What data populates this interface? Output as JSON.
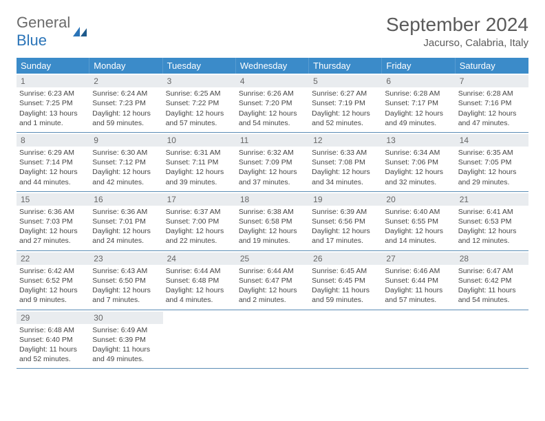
{
  "logo": {
    "general": "General",
    "blue": "Blue"
  },
  "title": "September 2024",
  "location": "Jacurso, Calabria, Italy",
  "colors": {
    "header_bg": "#3b8bc9",
    "header_text": "#ffffff",
    "daynum_bg": "#e9ecef",
    "week_border": "#5a8cb5",
    "text": "#444444",
    "title_text": "#5a5a5a",
    "logo_gray": "#6a6a6a",
    "logo_blue": "#2a74b8"
  },
  "day_headers": [
    "Sunday",
    "Monday",
    "Tuesday",
    "Wednesday",
    "Thursday",
    "Friday",
    "Saturday"
  ],
  "weeks": [
    [
      {
        "n": "1",
        "sr": "Sunrise: 6:23 AM",
        "ss": "Sunset: 7:25 PM",
        "dl": "Daylight: 13 hours and 1 minute."
      },
      {
        "n": "2",
        "sr": "Sunrise: 6:24 AM",
        "ss": "Sunset: 7:23 PM",
        "dl": "Daylight: 12 hours and 59 minutes."
      },
      {
        "n": "3",
        "sr": "Sunrise: 6:25 AM",
        "ss": "Sunset: 7:22 PM",
        "dl": "Daylight: 12 hours and 57 minutes."
      },
      {
        "n": "4",
        "sr": "Sunrise: 6:26 AM",
        "ss": "Sunset: 7:20 PM",
        "dl": "Daylight: 12 hours and 54 minutes."
      },
      {
        "n": "5",
        "sr": "Sunrise: 6:27 AM",
        "ss": "Sunset: 7:19 PM",
        "dl": "Daylight: 12 hours and 52 minutes."
      },
      {
        "n": "6",
        "sr": "Sunrise: 6:28 AM",
        "ss": "Sunset: 7:17 PM",
        "dl": "Daylight: 12 hours and 49 minutes."
      },
      {
        "n": "7",
        "sr": "Sunrise: 6:28 AM",
        "ss": "Sunset: 7:16 PM",
        "dl": "Daylight: 12 hours and 47 minutes."
      }
    ],
    [
      {
        "n": "8",
        "sr": "Sunrise: 6:29 AM",
        "ss": "Sunset: 7:14 PM",
        "dl": "Daylight: 12 hours and 44 minutes."
      },
      {
        "n": "9",
        "sr": "Sunrise: 6:30 AM",
        "ss": "Sunset: 7:12 PM",
        "dl": "Daylight: 12 hours and 42 minutes."
      },
      {
        "n": "10",
        "sr": "Sunrise: 6:31 AM",
        "ss": "Sunset: 7:11 PM",
        "dl": "Daylight: 12 hours and 39 minutes."
      },
      {
        "n": "11",
        "sr": "Sunrise: 6:32 AM",
        "ss": "Sunset: 7:09 PM",
        "dl": "Daylight: 12 hours and 37 minutes."
      },
      {
        "n": "12",
        "sr": "Sunrise: 6:33 AM",
        "ss": "Sunset: 7:08 PM",
        "dl": "Daylight: 12 hours and 34 minutes."
      },
      {
        "n": "13",
        "sr": "Sunrise: 6:34 AM",
        "ss": "Sunset: 7:06 PM",
        "dl": "Daylight: 12 hours and 32 minutes."
      },
      {
        "n": "14",
        "sr": "Sunrise: 6:35 AM",
        "ss": "Sunset: 7:05 PM",
        "dl": "Daylight: 12 hours and 29 minutes."
      }
    ],
    [
      {
        "n": "15",
        "sr": "Sunrise: 6:36 AM",
        "ss": "Sunset: 7:03 PM",
        "dl": "Daylight: 12 hours and 27 minutes."
      },
      {
        "n": "16",
        "sr": "Sunrise: 6:36 AM",
        "ss": "Sunset: 7:01 PM",
        "dl": "Daylight: 12 hours and 24 minutes."
      },
      {
        "n": "17",
        "sr": "Sunrise: 6:37 AM",
        "ss": "Sunset: 7:00 PM",
        "dl": "Daylight: 12 hours and 22 minutes."
      },
      {
        "n": "18",
        "sr": "Sunrise: 6:38 AM",
        "ss": "Sunset: 6:58 PM",
        "dl": "Daylight: 12 hours and 19 minutes."
      },
      {
        "n": "19",
        "sr": "Sunrise: 6:39 AM",
        "ss": "Sunset: 6:56 PM",
        "dl": "Daylight: 12 hours and 17 minutes."
      },
      {
        "n": "20",
        "sr": "Sunrise: 6:40 AM",
        "ss": "Sunset: 6:55 PM",
        "dl": "Daylight: 12 hours and 14 minutes."
      },
      {
        "n": "21",
        "sr": "Sunrise: 6:41 AM",
        "ss": "Sunset: 6:53 PM",
        "dl": "Daylight: 12 hours and 12 minutes."
      }
    ],
    [
      {
        "n": "22",
        "sr": "Sunrise: 6:42 AM",
        "ss": "Sunset: 6:52 PM",
        "dl": "Daylight: 12 hours and 9 minutes."
      },
      {
        "n": "23",
        "sr": "Sunrise: 6:43 AM",
        "ss": "Sunset: 6:50 PM",
        "dl": "Daylight: 12 hours and 7 minutes."
      },
      {
        "n": "24",
        "sr": "Sunrise: 6:44 AM",
        "ss": "Sunset: 6:48 PM",
        "dl": "Daylight: 12 hours and 4 minutes."
      },
      {
        "n": "25",
        "sr": "Sunrise: 6:44 AM",
        "ss": "Sunset: 6:47 PM",
        "dl": "Daylight: 12 hours and 2 minutes."
      },
      {
        "n": "26",
        "sr": "Sunrise: 6:45 AM",
        "ss": "Sunset: 6:45 PM",
        "dl": "Daylight: 11 hours and 59 minutes."
      },
      {
        "n": "27",
        "sr": "Sunrise: 6:46 AM",
        "ss": "Sunset: 6:44 PM",
        "dl": "Daylight: 11 hours and 57 minutes."
      },
      {
        "n": "28",
        "sr": "Sunrise: 6:47 AM",
        "ss": "Sunset: 6:42 PM",
        "dl": "Daylight: 11 hours and 54 minutes."
      }
    ],
    [
      {
        "n": "29",
        "sr": "Sunrise: 6:48 AM",
        "ss": "Sunset: 6:40 PM",
        "dl": "Daylight: 11 hours and 52 minutes."
      },
      {
        "n": "30",
        "sr": "Sunrise: 6:49 AM",
        "ss": "Sunset: 6:39 PM",
        "dl": "Daylight: 11 hours and 49 minutes."
      },
      null,
      null,
      null,
      null,
      null
    ]
  ]
}
